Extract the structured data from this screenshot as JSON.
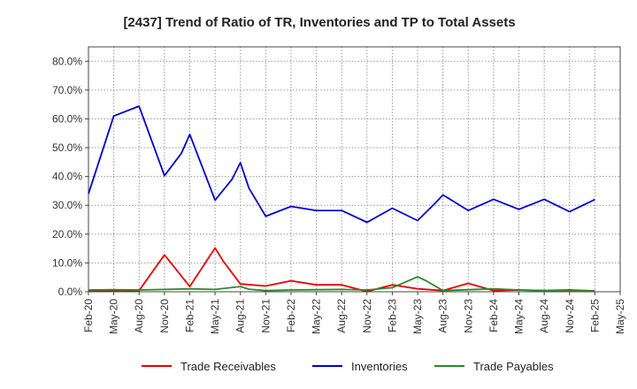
{
  "chart_data": {
    "type": "line",
    "title": "[2437]  Trend of Ratio of TR, Inventories and TP to Total Assets",
    "xlabel": "",
    "ylabel": "",
    "ylim": [
      0,
      85
    ],
    "yticks": [
      0,
      10,
      20,
      30,
      40,
      50,
      60,
      70,
      80
    ],
    "ytick_labels": [
      "0.0%",
      "10.0%",
      "20.0%",
      "30.0%",
      "40.0%",
      "50.0%",
      "60.0%",
      "70.0%",
      "80.0%"
    ],
    "x_tick_labels": [
      "Feb-20",
      "May-20",
      "Aug-20",
      "Nov-20",
      "Feb-21",
      "May-21",
      "Aug-21",
      "Nov-21",
      "Feb-22",
      "May-22",
      "Aug-22",
      "Nov-22",
      "Feb-23",
      "May-23",
      "Aug-23",
      "Nov-23",
      "Feb-24",
      "May-24",
      "Aug-24",
      "Nov-24",
      "Feb-25",
      "May-25"
    ],
    "x_months_per_tick": 3,
    "grid": true,
    "legend_position": "bottom",
    "series": [
      {
        "name": "Trade Receivables",
        "color": "#e60000",
        "points": [
          [
            "Feb-20",
            0.3
          ],
          [
            "May-20",
            0.3
          ],
          [
            "Aug-20",
            0.4
          ],
          [
            "Nov-20",
            12.8
          ],
          [
            "Feb-21",
            1.8
          ],
          [
            "May-21",
            15.2
          ],
          [
            "Jun-21",
            10.5
          ],
          [
            "Aug-21",
            2.7
          ],
          [
            "Nov-21",
            2.0
          ],
          [
            "Feb-22",
            3.8
          ],
          [
            "May-22",
            2.4
          ],
          [
            "Aug-22",
            2.4
          ],
          [
            "Nov-22",
            0.1
          ],
          [
            "Feb-23",
            2.4
          ],
          [
            "May-23",
            1.0
          ],
          [
            "Aug-23",
            0.4
          ],
          [
            "Nov-23",
            2.9
          ],
          [
            "Feb-24",
            0.4
          ],
          [
            "May-24",
            0.6
          ],
          [
            "Aug-24",
            0.4
          ],
          [
            "Nov-24",
            0.6
          ],
          [
            "Feb-25",
            0.3
          ]
        ]
      },
      {
        "name": "Inventories",
        "color": "#0000cc",
        "points": [
          [
            "Feb-20",
            34.0
          ],
          [
            "May-20",
            61.0
          ],
          [
            "Aug-20",
            64.4
          ],
          [
            "Nov-20",
            40.3
          ],
          [
            "Jan-21",
            48.0
          ],
          [
            "Feb-21",
            54.6
          ],
          [
            "May-21",
            31.8
          ],
          [
            "Jul-21",
            39.0
          ],
          [
            "Aug-21",
            44.8
          ],
          [
            "Sep-21",
            36.0
          ],
          [
            "Nov-21",
            26.2
          ],
          [
            "Feb-22",
            29.6
          ],
          [
            "May-22",
            28.2
          ],
          [
            "Aug-22",
            28.2
          ],
          [
            "Nov-22",
            24.1
          ],
          [
            "Feb-23",
            29.0
          ],
          [
            "May-23",
            24.7
          ],
          [
            "Jul-23",
            30.5
          ],
          [
            "Aug-23",
            33.6
          ],
          [
            "Nov-23",
            28.2
          ],
          [
            "Feb-24",
            32.1
          ],
          [
            "May-24",
            28.6
          ],
          [
            "Aug-24",
            32.1
          ],
          [
            "Nov-24",
            27.8
          ],
          [
            "Feb-25",
            32.0
          ]
        ]
      },
      {
        "name": "Trade Payables",
        "color": "#2a8a2a",
        "points": [
          [
            "Feb-20",
            0.6
          ],
          [
            "May-20",
            0.7
          ],
          [
            "Aug-20",
            0.6
          ],
          [
            "Nov-20",
            0.8
          ],
          [
            "Feb-21",
            1.0
          ],
          [
            "May-21",
            0.8
          ],
          [
            "Aug-21",
            1.8
          ],
          [
            "Sep-21",
            0.9
          ],
          [
            "Nov-21",
            0.4
          ],
          [
            "Feb-22",
            0.6
          ],
          [
            "May-22",
            0.7
          ],
          [
            "Aug-22",
            0.8
          ],
          [
            "Nov-22",
            0.6
          ],
          [
            "Feb-23",
            1.4
          ],
          [
            "May-23",
            5.2
          ],
          [
            "Jun-23",
            3.8
          ],
          [
            "Aug-23",
            0.4
          ],
          [
            "Nov-23",
            0.7
          ],
          [
            "Feb-24",
            1.0
          ],
          [
            "May-24",
            0.6
          ],
          [
            "Aug-24",
            0.4
          ],
          [
            "Nov-24",
            0.3
          ],
          [
            "Feb-25",
            0.3
          ]
        ]
      }
    ]
  }
}
